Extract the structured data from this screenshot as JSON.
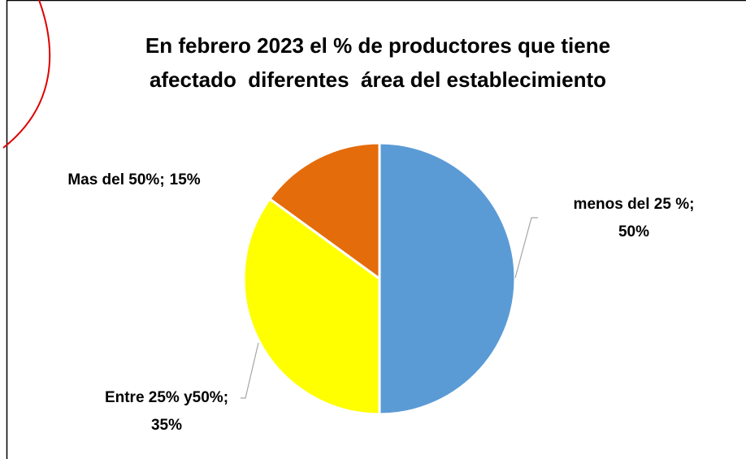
{
  "chart_data": {
    "type": "pie",
    "title": [
      "En febrero 2023 el % de productores que tiene",
      "afectado  diferentes  área del establecimiento"
    ],
    "categories": [
      "menos del 25 %",
      "Entre 25% y50%",
      "Mas del 50%"
    ],
    "values": [
      50,
      35,
      15
    ],
    "value_labels": [
      "50%",
      "35%",
      "15%"
    ],
    "label_separator": ";",
    "colors": [
      "#5b9bd5",
      "#ffff00",
      "#e46c0a"
    ]
  }
}
